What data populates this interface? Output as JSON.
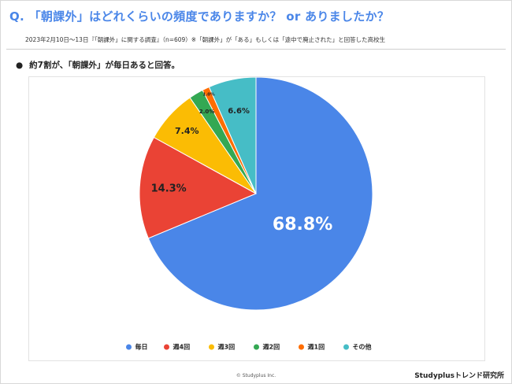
{
  "header": {
    "question": "Q. 「朝課外」はどれくらいの頻度でありますか？ or ありましたか？",
    "survey_note": "2023年2月10日〜13日『「朝課外」に関する調査』（n=609）※「朝課外」が「ある」もしくは「途中で廃止された」と回答した高校生"
  },
  "summary": {
    "bullet": "●",
    "text": "約7割が、「朝課外」が毎日あると回答。"
  },
  "chart_data": {
    "type": "pie",
    "title": "",
    "start_angle_deg": 0,
    "direction": "clockwise",
    "legend_position": "bottom",
    "slices": [
      {
        "label": "毎日",
        "value": 68.8,
        "display": "68.8%",
        "color": "#4a86e8"
      },
      {
        "label": "週4回",
        "value": 14.3,
        "display": "14.3%",
        "color": "#ea4335"
      },
      {
        "label": "週3回",
        "value": 7.4,
        "display": "7.4%",
        "color": "#fbbc04"
      },
      {
        "label": "週2回",
        "value": 2.0,
        "display": "2.0%",
        "color": "#34a853"
      },
      {
        "label": "週1回",
        "value": 1.0,
        "display": "1.0%",
        "color": "#ff6d01"
      },
      {
        "label": "その他",
        "value": 6.6,
        "display": "6.6%",
        "color": "#46bdc6"
      }
    ]
  },
  "footer": {
    "copyright": "© Studyplus Inc.",
    "brand": "Studyplusトレンド研究所"
  }
}
